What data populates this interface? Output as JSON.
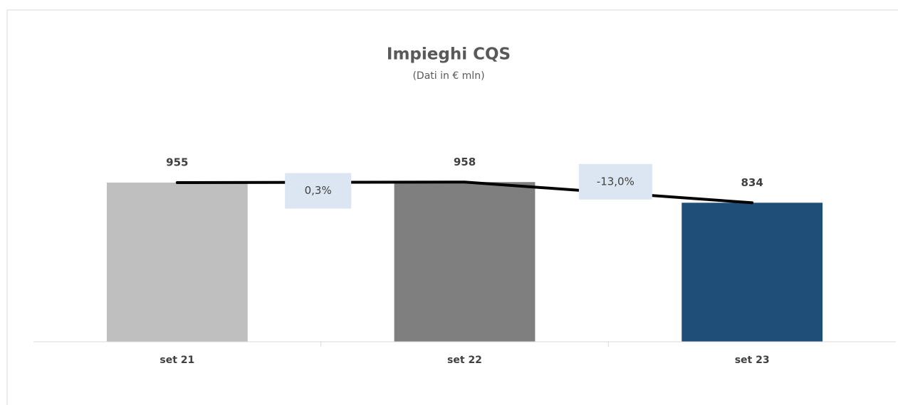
{
  "chart_data": {
    "type": "bar",
    "title": "Impieghi CQS",
    "subtitle": "(Dati in € mln)",
    "categories": [
      "set 21",
      "set 22",
      "set 23"
    ],
    "values": [
      955,
      958,
      834
    ],
    "colors": [
      "#bfbfbf",
      "#7f7f7f",
      "#1f4e79"
    ],
    "line_color": "#000000",
    "ylim": [
      0,
      1000
    ],
    "changes": {
      "values": [
        0.3,
        -13.0
      ],
      "value_labels": [
        "0,3%",
        "-13,0%"
      ],
      "color": "#dce6f2"
    }
  }
}
